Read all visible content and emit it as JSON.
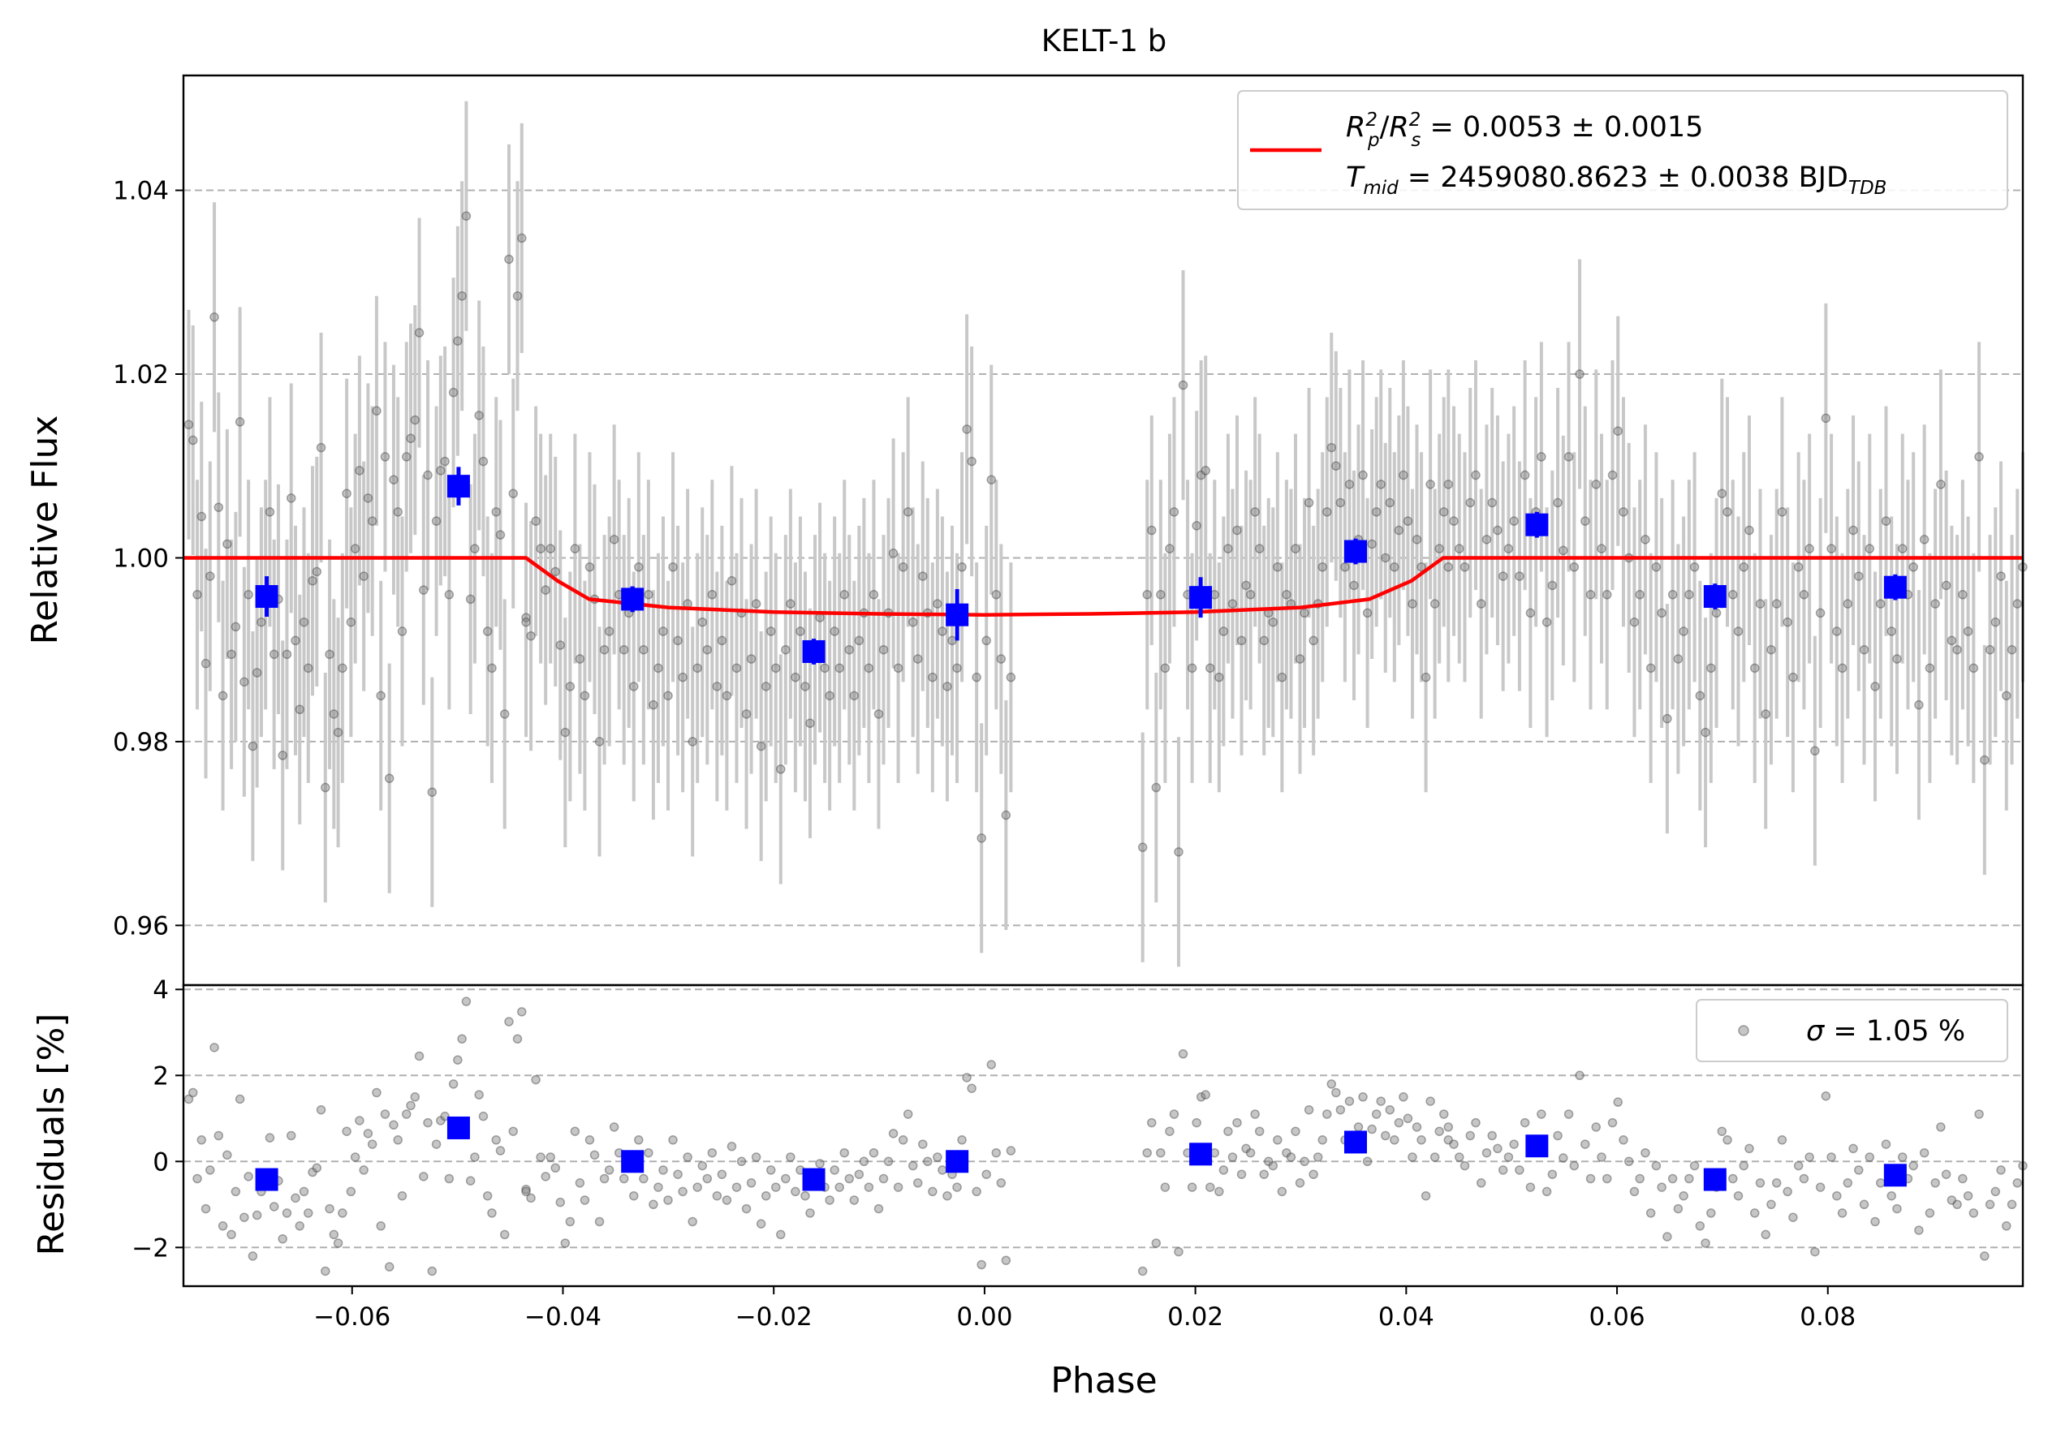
{
  "chart_data": [
    {
      "panel": "top",
      "type": "scatter",
      "title": "KELT-1 b",
      "ylabel": "Relative Flux",
      "xlim": [
        -0.076,
        0.0985
      ],
      "ylim": [
        0.9535,
        1.0525
      ],
      "yticks": [
        0.96,
        0.98,
        1.0,
        1.02,
        1.04
      ],
      "ytick_labels": [
        "0.96",
        "0.98",
        "1.00",
        "1.02",
        "1.04"
      ],
      "grid": "horizontal dashed",
      "legend_placement": "top-right",
      "legend": {
        "line1": {
          "sym_sup_a": "2",
          "sym_sub_a": "p",
          "sym_sup_b": "2",
          "sym_sub_b": "s",
          "value": " = 0.0053 ± 0.0015"
        },
        "line2": {
          "sym": "T",
          "sym_sub": "mid",
          "value": " = 2459080.8623 ± 0.0038 BJD",
          "value_sub": "TDB"
        }
      },
      "colors": {
        "data": "#808080",
        "error": "#c8c8c8",
        "binned": "#0000ff",
        "model": "#ff0000"
      },
      "model": {
        "x": [
          -0.076,
          -0.0435,
          -0.0405,
          -0.0375,
          -0.03,
          -0.02,
          -0.01,
          0.0,
          0.01,
          0.02,
          0.03,
          0.0365,
          0.0405,
          0.0435,
          0.0985
        ],
        "y": [
          1.0,
          1.0,
          0.9975,
          0.9955,
          0.9946,
          0.9941,
          0.9939,
          0.9938,
          0.9939,
          0.9941,
          0.9946,
          0.9955,
          0.9975,
          1.0,
          1.0
        ]
      },
      "binned": {
        "x": [
          -0.0681,
          -0.0499,
          -0.0334,
          -0.0162,
          -0.0026,
          0.0205,
          0.0352,
          0.0524,
          0.0693,
          0.0864
        ],
        "y": [
          0.9958,
          1.0078,
          0.9955,
          0.9898,
          0.9938,
          0.9957,
          1.0007,
          1.0036,
          0.9958,
          0.9968
        ],
        "yerr": [
          0.0022,
          0.0021,
          0.0014,
          0.0014,
          0.0028,
          0.0022,
          0.0014,
          0.0014,
          0.0014,
          0.0014
        ]
      },
      "data_segments": [
        {
          "xstart": -0.0755,
          "xend": -0.0435,
          "points": [
            1.0145,
            1.0128,
            0.996,
            1.0045,
            0.9885,
            0.998,
            1.0262,
            1.0055,
            0.985,
            1.0015,
            0.9895,
            0.9925,
            1.0148,
            0.9865,
            0.996,
            0.9795,
            0.9875,
            0.993,
            0.996,
            1.005,
            0.9895,
            0.9955,
            0.9785,
            0.9895,
            1.0065,
            0.991,
            0.9835,
            0.993,
            0.988,
            0.9975,
            0.9985,
            1.012,
            0.975,
            0.9895,
            0.983,
            0.981,
            0.988,
            1.007,
            0.993,
            1.001,
            1.0095,
            0.998,
            1.0065,
            1.004,
            1.016,
            0.985,
            1.011,
            0.976,
            1.0085,
            1.005,
            0.992,
            1.011,
            1.013,
            1.015,
            1.0245,
            0.9965,
            1.009,
            0.9745,
            1.004,
            1.0095,
            1.0105,
            0.996,
            1.018,
            1.0236,
            1.0285,
            1.0372,
            0.9955,
            1.001,
            1.0155,
            1.0105,
            0.992,
            0.988,
            1.005,
            1.0025,
            0.983,
            1.0325,
            1.007,
            1.0285,
            1.0348,
            0.9935
          ]
        },
        {
          "xstart": -0.0435,
          "xend": 0.0025,
          "points": [
            0.993,
            0.9915,
            1.004,
            1.001,
            0.9965,
            1.001,
            0.9985,
            0.9905,
            0.981,
            0.986,
            1.001,
            0.989,
            0.985,
            0.999,
            0.9955,
            0.98,
            0.99,
            0.992,
            1.002,
            0.996,
            0.99,
            0.994,
            0.986,
            0.999,
            0.99,
            0.996,
            0.984,
            0.988,
            0.992,
            0.985,
            0.999,
            0.991,
            0.987,
            0.995,
            0.98,
            0.988,
            0.993,
            0.99,
            0.996,
            0.986,
            0.991,
            0.985,
            0.9975,
            0.988,
            0.994,
            0.983,
            0.989,
            0.995,
            0.9795,
            0.986,
            0.992,
            0.988,
            0.977,
            0.99,
            0.995,
            0.987,
            0.992,
            0.986,
            0.982,
            0.99,
            0.9935,
            0.988,
            0.985,
            0.992,
            0.988,
            0.996,
            0.99,
            0.985,
            0.991,
            0.994,
            0.988,
            0.996,
            0.983,
            0.99,
            0.994,
            1.0005,
            0.988,
            0.999,
            1.005,
            0.993,
            0.989,
            0.998,
            0.994,
            0.987,
            0.995,
            0.992,
            0.986,
            0.991,
            0.988,
            0.999,
            1.014,
            1.0105,
            0.987,
            0.9695,
            0.991,
            1.0085,
            0.996,
            0.989,
            0.972,
            0.987
          ]
        },
        {
          "xstart": 0.015,
          "xend": 0.044,
          "points": [
            0.9685,
            0.996,
            1.003,
            0.975,
            0.996,
            0.988,
            1.001,
            1.005,
            0.968,
            1.0188,
            0.996,
            0.988,
            1.0035,
            1.009,
            1.0095,
            0.988,
            0.996,
            0.987,
            0.992,
            1.001,
            0.995,
            1.003,
            0.991,
            0.997,
            0.996,
            1.005,
            1.001,
            0.991,
            0.994,
            0.993,
            0.999,
            0.987,
            0.996,
            0.995,
            1.001,
            0.989,
            0.994,
            1.006,
            0.991,
            0.995,
            0.999,
            1.005,
            1.012,
            1.01,
            1.006,
            0.999,
            1.008,
            0.997,
            1.002,
            1.009,
            0.994,
            1.0015,
            1.005,
            1.008,
            1.0,
            1.006,
            0.999,
            1.003,
            1.009,
            1.004,
            0.995,
            1.002,
            0.999,
            0.987,
            1.008,
            0.995,
            1.001,
            1.005,
            0.999
          ]
        },
        {
          "xstart": 0.044,
          "xend": 0.0985,
          "points": [
            1.008,
            1.004,
            1.001,
            0.999,
            1.006,
            1.009,
            0.995,
            1.002,
            1.006,
            1.003,
            0.998,
            1.001,
            1.004,
            0.998,
            1.009,
            0.994,
            1.005,
            1.011,
            0.993,
            0.997,
            1.006,
            1.0008,
            1.011,
            0.999,
            1.02,
            1.004,
            0.996,
            1.008,
            1.001,
            0.996,
            1.009,
            1.0138,
            1.005,
            1.0,
            0.993,
            0.996,
            1.002,
            0.988,
            0.999,
            0.994,
            0.9825,
            0.996,
            0.989,
            0.992,
            0.996,
            0.999,
            0.985,
            0.981,
            0.988,
            0.994,
            1.007,
            1.005,
            0.996,
            0.992,
            0.999,
            1.003,
            0.988,
            0.995,
            0.983,
            0.99,
            0.995,
            1.005,
            0.993,
            0.987,
            0.999,
            0.996,
            1.001,
            0.979,
            0.994,
            1.0152,
            1.001,
            0.992,
            0.988,
            0.995,
            1.003,
            0.998,
            0.99,
            1.001,
            0.986,
            0.995,
            1.004,
            0.992,
            0.989,
            1.001,
            0.996,
            0.999,
            0.984,
            1.002,
            0.988,
            0.995,
            1.008,
            0.997,
            0.991,
            0.99,
            0.996,
            0.992,
            0.988,
            1.011,
            0.978,
            0.99,
            0.993,
            0.998,
            0.985,
            0.99,
            0.995,
            0.999
          ]
        }
      ]
    },
    {
      "panel": "bottom",
      "type": "scatter",
      "xlabel": "Phase",
      "ylabel": "Residuals [%]",
      "xlim": [
        -0.076,
        0.0985
      ],
      "ylim": [
        -2.9,
        4.1
      ],
      "yticks": [
        -2,
        0,
        2,
        4
      ],
      "ytick_labels": [
        "−2",
        "0",
        "2",
        "4"
      ],
      "xticks": [
        -0.06,
        -0.04,
        -0.02,
        0.0,
        0.02,
        0.04,
        0.06,
        0.08
      ],
      "xtick_labels": [
        "−0.06",
        "−0.04",
        "−0.02",
        "0.00",
        "0.02",
        "0.04",
        "0.06",
        "0.08"
      ],
      "grid": "horizontal dashed",
      "legend_placement": "top-right",
      "legend": {
        "sym": "σ",
        "value": " = 1.05 %"
      },
      "binned": {
        "x": [
          -0.0681,
          -0.0499,
          -0.0334,
          -0.0162,
          -0.0026,
          0.0205,
          0.0352,
          0.0524,
          0.0693,
          0.0864
        ],
        "y": [
          -0.42,
          0.78,
          0.0,
          -0.42,
          0.0,
          0.17,
          0.45,
          0.36,
          -0.42,
          -0.32
        ]
      },
      "data_segments": [
        {
          "xstart": -0.0755,
          "xend": -0.0435,
          "points": [
            1.45,
            1.6,
            -0.4,
            0.5,
            -1.1,
            -0.2,
            2.65,
            0.6,
            -1.5,
            0.15,
            -1.7,
            -0.7,
            1.45,
            -1.3,
            -0.35,
            -2.2,
            -1.25,
            -0.7,
            -0.4,
            0.55,
            -1.05,
            -0.45,
            -1.8,
            -1.2,
            0.6,
            -0.85,
            -1.5,
            -0.7,
            -1.2,
            -0.25,
            -0.15,
            1.2,
            -2.55,
            -1.1,
            -1.7,
            -1.9,
            -1.2,
            0.7,
            -0.7,
            0.1,
            0.95,
            -0.2,
            0.65,
            0.4,
            1.6,
            -1.5,
            1.1,
            -2.45,
            0.85,
            0.5,
            -0.8,
            1.1,
            1.3,
            1.5,
            2.45,
            -0.35,
            0.9,
            -2.55,
            0.4,
            0.95,
            1.05,
            -0.4,
            1.8,
            2.36,
            2.85,
            3.72,
            -0.45,
            0.1,
            1.55,
            1.05,
            -0.8,
            -1.2,
            0.5,
            0.25,
            -1.7,
            3.25,
            0.7,
            2.85,
            3.48,
            -0.65
          ]
        },
        {
          "xstart": -0.0435,
          "xend": 0.0025,
          "points": [
            -0.7,
            -0.85,
            1.9,
            0.1,
            -0.35,
            0.1,
            -0.15,
            -0.95,
            -1.9,
            -1.4,
            0.7,
            -0.5,
            -0.9,
            0.5,
            0.15,
            -1.4,
            -0.4,
            -0.2,
            0.8,
            0.2,
            -0.4,
            0.0,
            -0.8,
            0.5,
            -0.4,
            0.2,
            -1.0,
            -0.6,
            -0.2,
            -0.9,
            0.5,
            -0.3,
            -0.7,
            0.1,
            -1.4,
            -0.6,
            -0.1,
            -0.4,
            0.2,
            -0.8,
            -0.3,
            -0.9,
            0.35,
            -0.6,
            0.0,
            -1.1,
            -0.5,
            0.1,
            -1.45,
            -0.8,
            -0.2,
            -0.6,
            -1.7,
            -0.4,
            0.1,
            -0.7,
            -0.2,
            -0.8,
            -1.2,
            -0.4,
            -0.05,
            -0.6,
            -0.9,
            -0.2,
            -0.6,
            0.2,
            -0.4,
            -0.9,
            -0.3,
            0.0,
            -0.6,
            0.2,
            -1.1,
            -0.4,
            0.0,
            0.65,
            -0.6,
            0.5,
            1.1,
            -0.1,
            -0.5,
            0.4,
            0.0,
            -0.7,
            0.1,
            -0.2,
            -0.8,
            -0.3,
            -0.6,
            0.5,
            1.95,
            1.7,
            -0.7,
            -2.4,
            -0.3,
            2.25,
            0.2,
            -0.5,
            -2.3,
            0.25
          ]
        },
        {
          "xstart": 0.015,
          "xend": 0.044,
          "points": [
            -2.55,
            0.2,
            0.9,
            -1.9,
            0.2,
            -0.6,
            0.7,
            1.1,
            -2.1,
            2.5,
            0.2,
            -0.6,
            0.9,
            1.5,
            1.55,
            -0.6,
            0.2,
            -0.7,
            -0.2,
            0.7,
            0.1,
            0.9,
            -0.3,
            0.3,
            0.2,
            1.1,
            0.7,
            -0.3,
            0.0,
            -0.1,
            0.5,
            -0.7,
            0.2,
            0.1,
            0.7,
            -0.5,
            0.0,
            1.2,
            -0.3,
            0.1,
            0.5,
            1.1,
            1.8,
            1.6,
            1.2,
            0.5,
            1.4,
            0.3,
            0.8,
            1.5,
            0.0,
            0.75,
            1.1,
            1.4,
            0.6,
            1.2,
            0.5,
            0.9,
            1.5,
            1.0,
            0.1,
            0.8,
            0.5,
            -0.8,
            1.4,
            0.1,
            0.7,
            1.1,
            0.5
          ]
        },
        {
          "xstart": 0.044,
          "xend": 0.0985,
          "points": [
            0.8,
            0.4,
            0.1,
            -0.1,
            0.6,
            0.9,
            -0.5,
            0.2,
            0.6,
            0.3,
            -0.2,
            0.1,
            0.4,
            -0.2,
            0.9,
            -0.6,
            0.5,
            1.1,
            -0.7,
            -0.3,
            0.6,
            0.08,
            1.1,
            -0.1,
            2.0,
            0.4,
            -0.4,
            0.8,
            0.1,
            -0.4,
            0.9,
            1.38,
            0.5,
            0.0,
            -0.7,
            -0.4,
            0.2,
            -1.2,
            -0.1,
            -0.6,
            -1.75,
            -0.4,
            -1.1,
            -0.8,
            -0.4,
            -0.1,
            -1.5,
            -1.9,
            -1.2,
            -0.6,
            0.7,
            0.5,
            -0.4,
            -0.8,
            -0.1,
            0.3,
            -1.2,
            -0.5,
            -1.7,
            -1.0,
            -0.5,
            0.5,
            -0.7,
            -1.3,
            -0.1,
            -0.4,
            0.1,
            -2.1,
            -0.6,
            1.52,
            0.1,
            -0.8,
            -1.2,
            -0.5,
            0.3,
            -0.2,
            -1.0,
            0.1,
            -1.4,
            -0.5,
            0.4,
            -0.8,
            -1.1,
            0.1,
            -0.4,
            -0.1,
            -1.6,
            0.2,
            -1.2,
            -0.5,
            0.8,
            -0.3,
            -0.9,
            -1.0,
            -0.4,
            -0.8,
            -1.2,
            1.1,
            -2.2,
            -1.0,
            -0.7,
            -0.2,
            -1.5,
            -1.0,
            -0.5,
            -0.1
          ]
        }
      ]
    }
  ]
}
